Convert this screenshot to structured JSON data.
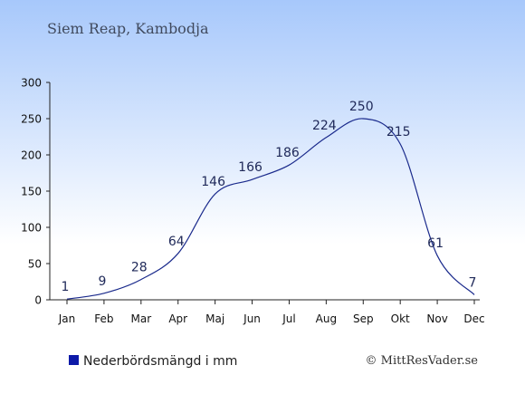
{
  "title": "Siem Reap, Kambodja",
  "legend_label": "Nederbördsmängd i mm",
  "credit": "© MittResVader.se",
  "colors": {
    "line": "#1a2a8c",
    "legend_swatch": "#0d1aa8",
    "text": "#202a5a",
    "bg_top": "#a7c8fb",
    "bg_bottom": "#ffffff"
  },
  "chart_data": {
    "type": "line",
    "categories": [
      "Jan",
      "Feb",
      "Mar",
      "Apr",
      "Maj",
      "Jun",
      "Jul",
      "Aug",
      "Sep",
      "Okt",
      "Nov",
      "Dec"
    ],
    "series": [
      {
        "name": "Nederbördsmängd i mm",
        "values": [
          1,
          9,
          28,
          64,
          146,
          166,
          186,
          224,
          250,
          215,
          61,
          7
        ]
      }
    ],
    "yticks": [
      0,
      50,
      100,
      150,
      200,
      250,
      300
    ],
    "ylim": [
      0,
      300
    ],
    "grid": false,
    "data_labels": true
  }
}
